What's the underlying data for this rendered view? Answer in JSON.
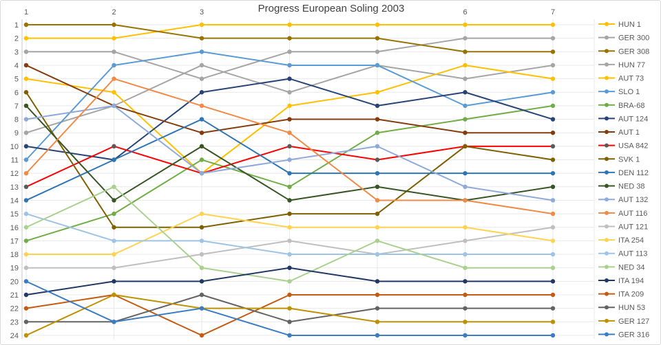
{
  "window": {
    "title": "Progress European Soling 2003"
  },
  "chart_data": {
    "type": "line",
    "title": "Progress European Soling 2003",
    "subtitle": "",
    "xlabel": "",
    "ylabel": "",
    "x": [
      1,
      2,
      3,
      4,
      5,
      6,
      7
    ],
    "x_tick_labels": [
      "1",
      "2",
      "3",
      "4",
      "5",
      "6",
      "7"
    ],
    "x_axis_position": "top",
    "y_tick_labels": [
      "1",
      "2",
      "3",
      "4",
      "5",
      "6",
      "7",
      "8",
      "9",
      "10",
      "11",
      "12",
      "13",
      "14",
      "15",
      "16",
      "17",
      "18",
      "19",
      "20",
      "21",
      "22",
      "23",
      "24"
    ],
    "y_min": 1,
    "y_max": 24,
    "y_axis_inverted": true,
    "grid": true,
    "grid_color": "#e8e8e8",
    "axis_line_color": "#c9c9c9",
    "axis_text_color": "#595959",
    "title_color": "#404040",
    "background_color": "#ffffff",
    "legend_position": "right",
    "series": [
      {
        "name": "HUN 1",
        "color": "#FFC000",
        "positions": [
          2,
          2,
          1,
          1,
          1,
          1,
          1
        ]
      },
      {
        "name": "GER 300",
        "color": "#A5A5A5",
        "positions": [
          3,
          3,
          5,
          3,
          3,
          2,
          2
        ]
      },
      {
        "name": "GER 308",
        "color": "#997300",
        "positions": [
          1,
          1,
          2,
          2,
          2,
          3,
          3
        ]
      },
      {
        "name": "HUN 77",
        "color": "#A5A5A5",
        "positions": [
          9,
          7,
          4,
          6,
          4,
          5,
          4
        ]
      },
      {
        "name": "AUT 73",
        "color": "#FFC000",
        "positions": [
          5,
          6,
          12,
          7,
          6,
          4,
          5
        ]
      },
      {
        "name": "SLO 1",
        "color": "#5B9BD5",
        "positions": [
          11,
          4,
          3,
          4,
          4,
          7,
          6
        ]
      },
      {
        "name": "BRA-68",
        "color": "#70AD47",
        "positions": [
          17,
          15,
          11,
          13,
          9,
          8,
          7
        ]
      },
      {
        "name": "AUT 124",
        "color": "#264478",
        "positions": [
          10,
          11,
          6,
          5,
          7,
          6,
          8
        ]
      },
      {
        "name": "AUT 1",
        "color": "#843C0C",
        "positions": [
          4,
          7,
          9,
          8,
          8,
          9,
          9
        ]
      },
      {
        "name": "USA 842",
        "color": "#FF0000",
        "marker_color": "#5A5A5A",
        "positions": [
          13,
          10,
          12,
          10,
          11,
          10,
          10
        ]
      },
      {
        "name": "SVK 1",
        "color": "#7F6000",
        "positions": [
          6,
          16,
          16,
          15,
          15,
          10,
          11
        ]
      },
      {
        "name": "DEN 112",
        "color": "#2E75B6",
        "positions": [
          14,
          11,
          8,
          12,
          12,
          12,
          12
        ]
      },
      {
        "name": "NED 38",
        "color": "#375623",
        "positions": [
          7,
          14,
          10,
          14,
          13,
          14,
          13
        ]
      },
      {
        "name": "AUT 132",
        "color": "#8EAADB",
        "positions": [
          8,
          7,
          12,
          11,
          10,
          13,
          14
        ]
      },
      {
        "name": "AUT 116",
        "color": "#F08A46",
        "positions": [
          12,
          5,
          7,
          9,
          14,
          14,
          15
        ]
      },
      {
        "name": "AUT 121",
        "color": "#BFBFBF",
        "positions": [
          19,
          19,
          18,
          17,
          18,
          17,
          16
        ]
      },
      {
        "name": "ITA 254",
        "color": "#FFD34F",
        "positions": [
          18,
          18,
          15,
          16,
          16,
          16,
          17
        ]
      },
      {
        "name": "AUT 113",
        "color": "#9DC3E6",
        "positions": [
          15,
          17,
          17,
          18,
          18,
          18,
          18
        ]
      },
      {
        "name": "NED 34",
        "color": "#A9D18E",
        "positions": [
          16,
          13,
          19,
          20,
          17,
          19,
          19
        ]
      },
      {
        "name": "ITA 194",
        "color": "#1F3864",
        "positions": [
          21,
          20,
          20,
          19,
          20,
          20,
          20
        ]
      },
      {
        "name": "ITA 209",
        "color": "#C55A11",
        "positions": [
          22,
          21,
          24,
          21,
          21,
          21,
          21
        ]
      },
      {
        "name": "HUN 53",
        "color": "#636363",
        "positions": [
          23,
          23,
          21,
          23,
          22,
          22,
          22
        ]
      },
      {
        "name": "GER 127",
        "color": "#BF9000",
        "positions": [
          24,
          21,
          22,
          22,
          23,
          23,
          23
        ]
      },
      {
        "name": "GER 316",
        "color": "#3A7DC2",
        "positions": [
          20,
          23,
          22,
          24,
          24,
          24,
          24
        ]
      }
    ]
  }
}
